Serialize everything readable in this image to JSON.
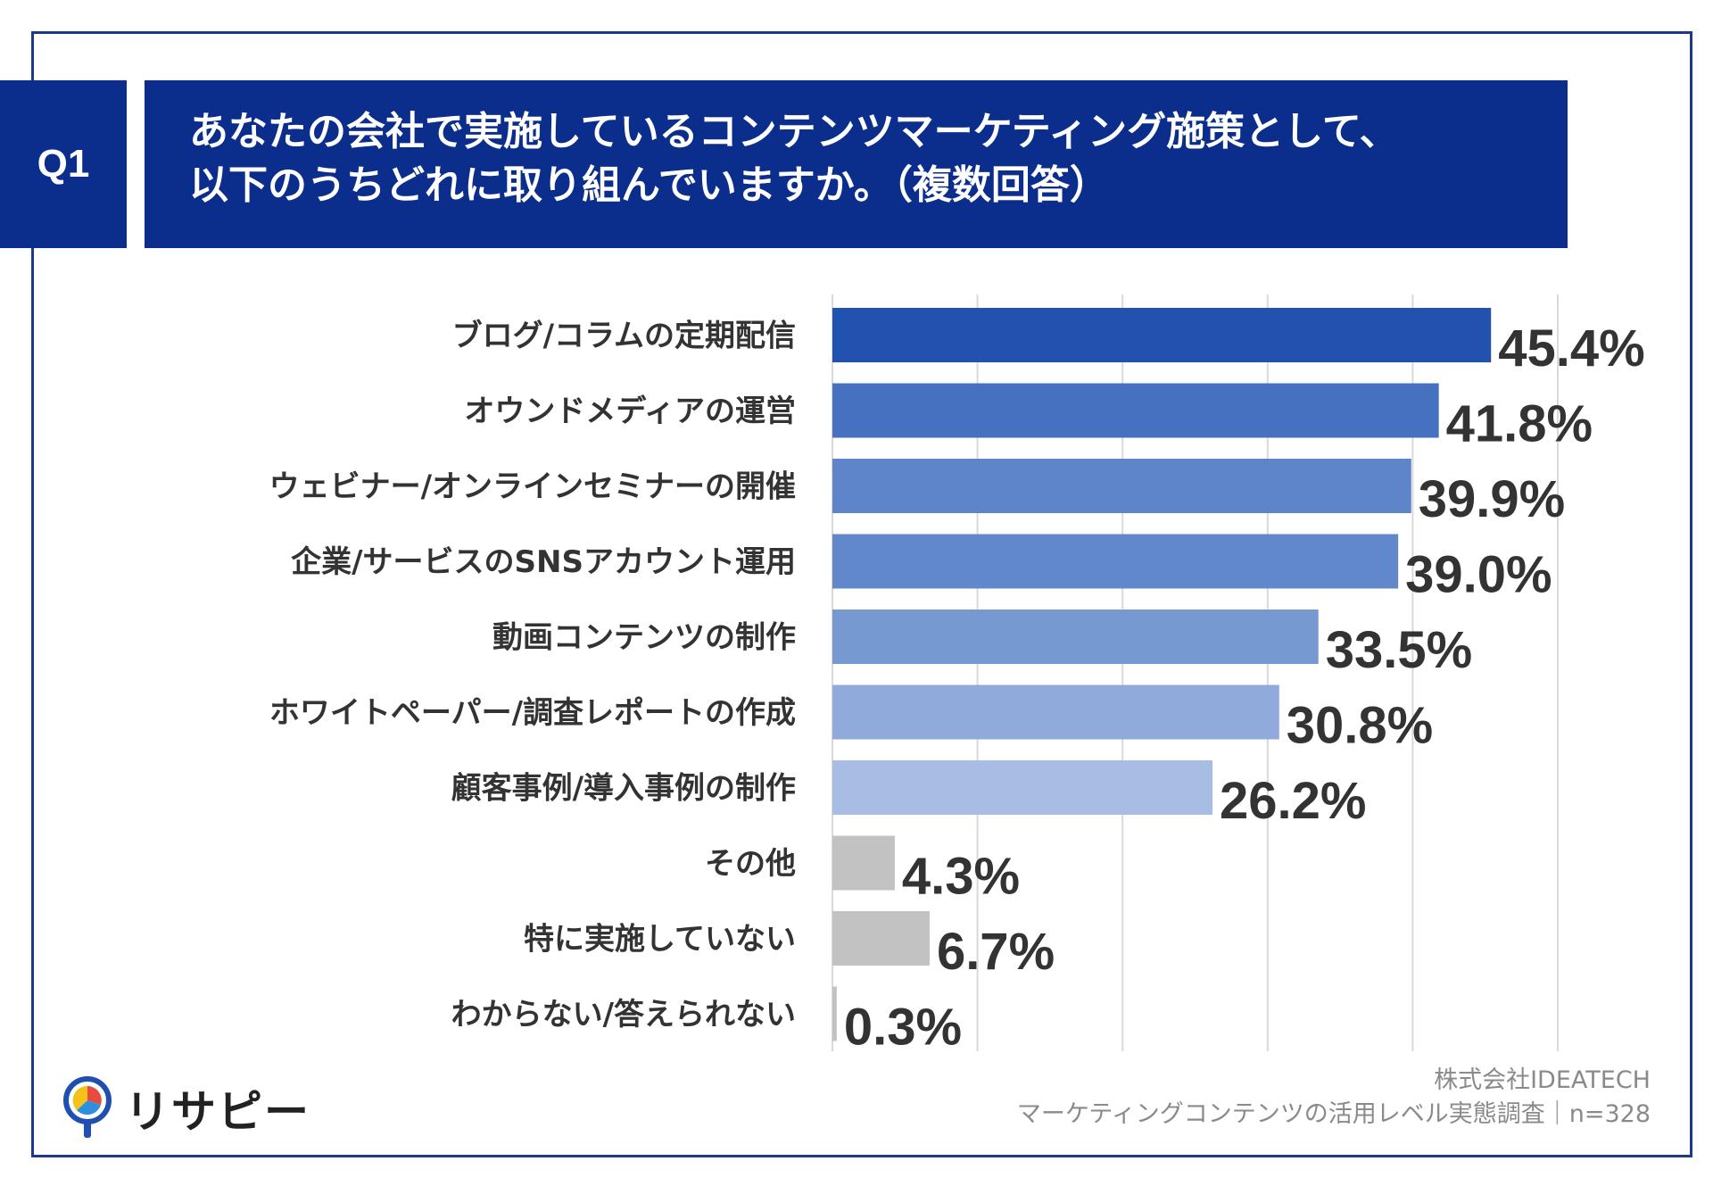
{
  "header": {
    "badge": "Q1",
    "title_line1": "あなたの会社で実施しているコンテンツマーケティング施策として、",
    "title_line2": "以下のうちどれに取り組んでいますか。（複数回答）"
  },
  "colors": {
    "header_bg": "#0b2d8c",
    "frame": "#1c3a8a",
    "bars": [
      "#2152b0",
      "#4670c0",
      "#5e85c9",
      "#6088ca",
      "#7799d2",
      "#90abdb",
      "#a7bde3",
      "#c2c2c2",
      "#c2c2c2",
      "#c2c2c2"
    ]
  },
  "chart_data": {
    "type": "bar",
    "orientation": "horizontal",
    "categories": [
      "ブログ/コラムの定期配信",
      "オウンドメディアの運営",
      "ウェビナー/オンラインセミナーの開催",
      "企業/サービスのSNSアカウント運用",
      "動画コンテンツの制作",
      "ホワイトペーパー/調査レポートの作成",
      "顧客事例/導入事例の制作",
      "その他",
      "特に実施していない",
      "わからない/答えられない"
    ],
    "values": [
      45.4,
      41.8,
      39.9,
      39.0,
      33.5,
      30.8,
      26.2,
      4.3,
      6.7,
      0.3
    ],
    "value_labels": [
      "45.4%",
      "41.8%",
      "39.9%",
      "39.0%",
      "33.5%",
      "30.8%",
      "26.2%",
      "4.3%",
      "6.7%",
      "0.3%"
    ],
    "xlim": [
      0,
      50
    ],
    "grid": true
  },
  "logo": {
    "text": "リサピー",
    "icon": "lightbulb-pin-icon"
  },
  "footer": {
    "company": "株式会社IDEATECH",
    "survey": "マーケティングコンテンツの活用レベル実態調査｜n=328"
  }
}
